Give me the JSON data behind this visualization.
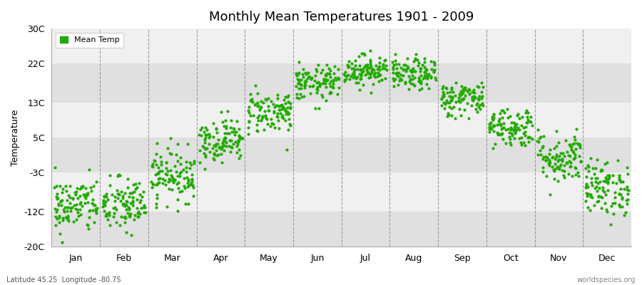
{
  "title": "Monthly Mean Temperatures 1901 - 2009",
  "ylabel": "Temperature",
  "xlabel_bottom_left": "Latitude 45.25  Longitude -80.75",
  "xlabel_bottom_right": "worldspecies.org",
  "legend_label": "Mean Temp",
  "dot_color": "#22aa00",
  "background_color": "#ffffff",
  "plot_bg_light": "#f0f0f0",
  "plot_bg_dark": "#e0e0e0",
  "ylim": [
    -20,
    30
  ],
  "yticks": [
    -20,
    -12,
    -3,
    5,
    13,
    22,
    30
  ],
  "ytick_labels": [
    "-20C",
    "-12C",
    "-3C",
    "5C",
    "13C",
    "22C",
    "30C"
  ],
  "months": [
    "Jan",
    "Feb",
    "Mar",
    "Apr",
    "May",
    "Jun",
    "Jul",
    "Aug",
    "Sep",
    "Oct",
    "Nov",
    "Dec"
  ],
  "month_mean_temps": [
    -10.5,
    -10.5,
    -3.5,
    4.5,
    11.0,
    17.5,
    20.5,
    19.5,
    14.0,
    7.5,
    0.5,
    -6.5
  ],
  "month_std_temps": [
    3.2,
    3.2,
    3.0,
    2.5,
    2.5,
    2.0,
    1.8,
    1.8,
    2.0,
    2.3,
    3.0,
    3.2
  ],
  "n_years": 109,
  "seed": 42,
  "marker_size": 9,
  "dot_alpha": 1.0,
  "vline_color": "#999999",
  "grid_style": "--"
}
